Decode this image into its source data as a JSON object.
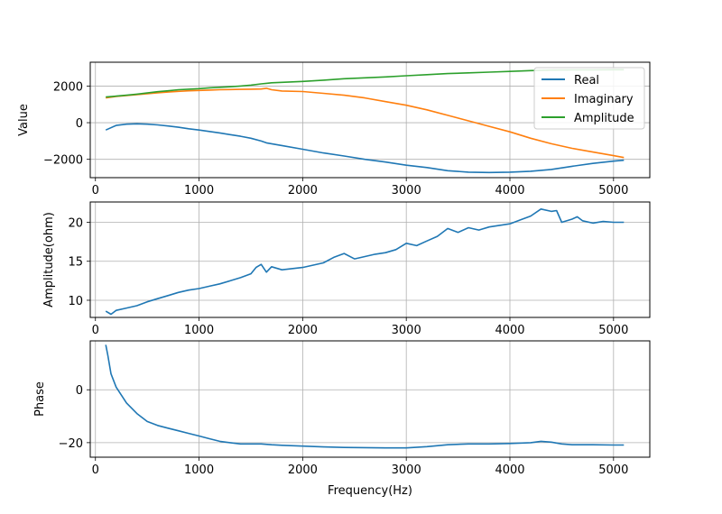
{
  "figure": {
    "xlabel": "Frequency(Hz)"
  },
  "chart_data": [
    {
      "type": "line",
      "title": "",
      "xlabel": "",
      "ylabel": "Value",
      "xlim": [
        -50,
        5350
      ],
      "ylim": [
        -3000,
        3300
      ],
      "xticks": [
        0,
        1000,
        2000,
        3000,
        4000,
        5000
      ],
      "yticks": [
        -2000,
        0,
        2000
      ],
      "xtick_labels": [
        "0",
        "1000",
        "2000",
        "3000",
        "4000",
        "5000"
      ],
      "ytick_labels": [
        "−2000",
        "0",
        "2000"
      ],
      "grid": true,
      "legend": "top-right",
      "x": [
        100,
        200,
        300,
        400,
        500,
        600,
        700,
        800,
        900,
        1000,
        1100,
        1200,
        1300,
        1400,
        1500,
        1600,
        1650,
        1700,
        1800,
        2000,
        2200,
        2400,
        2600,
        2800,
        3000,
        3200,
        3400,
        3600,
        3800,
        4000,
        4200,
        4400,
        4600,
        4800,
        5000,
        5100
      ],
      "series": [
        {
          "name": "Real",
          "color": "#1f77b4",
          "values": [
            -400,
            -150,
            -80,
            -60,
            -80,
            -120,
            -180,
            -250,
            -330,
            -400,
            -480,
            -560,
            -650,
            -740,
            -850,
            -1000,
            -1100,
            -1150,
            -1250,
            -1450,
            -1650,
            -1820,
            -2000,
            -2150,
            -2320,
            -2450,
            -2620,
            -2700,
            -2720,
            -2700,
            -2650,
            -2550,
            -2380,
            -2220,
            -2100,
            -2050
          ]
        },
        {
          "name": "Imaginary",
          "color": "#ff7f0e",
          "values": [
            1350,
            1430,
            1480,
            1530,
            1580,
            1630,
            1670,
            1710,
            1740,
            1760,
            1780,
            1800,
            1810,
            1820,
            1830,
            1840,
            1880,
            1800,
            1730,
            1700,
            1600,
            1500,
            1350,
            1150,
            950,
            700,
            400,
            100,
            -200,
            -500,
            -850,
            -1150,
            -1400,
            -1600,
            -1800,
            -1900
          ]
        },
        {
          "name": "Amplitude",
          "color": "#2ca02c",
          "values": [
            1400,
            1450,
            1500,
            1560,
            1620,
            1690,
            1740,
            1800,
            1830,
            1860,
            1900,
            1930,
            1960,
            2000,
            2050,
            2120,
            2150,
            2180,
            2200,
            2250,
            2320,
            2400,
            2450,
            2500,
            2560,
            2620,
            2680,
            2720,
            2760,
            2800,
            2840,
            2870,
            2880,
            2880,
            2890,
            2890
          ]
        }
      ]
    },
    {
      "type": "line",
      "title": "",
      "xlabel": "",
      "ylabel": "Amplitude(ohm)",
      "xlim": [
        -50,
        5350
      ],
      "ylim": [
        7.8,
        22.6
      ],
      "xticks": [
        0,
        1000,
        2000,
        3000,
        4000,
        5000
      ],
      "yticks": [
        10,
        15,
        20
      ],
      "xtick_labels": [
        "0",
        "1000",
        "2000",
        "3000",
        "4000",
        "5000"
      ],
      "ytick_labels": [
        "10",
        "15",
        "20"
      ],
      "grid": true,
      "legend": "none",
      "x": [
        100,
        150,
        200,
        300,
        400,
        500,
        600,
        700,
        800,
        900,
        1000,
        1100,
        1200,
        1300,
        1400,
        1500,
        1550,
        1600,
        1650,
        1700,
        1800,
        2000,
        2200,
        2300,
        2400,
        2500,
        2600,
        2700,
        2800,
        2900,
        3000,
        3100,
        3200,
        3300,
        3400,
        3500,
        3600,
        3700,
        3800,
        3900,
        4000,
        4100,
        4200,
        4300,
        4400,
        4450,
        4500,
        4600,
        4650,
        4700,
        4800,
        4900,
        5000,
        5100
      ],
      "series": [
        {
          "name": "Amplitude(ohm)",
          "color": "#1f77b4",
          "values": [
            8.6,
            8.2,
            8.7,
            9.0,
            9.3,
            9.8,
            10.2,
            10.6,
            11.0,
            11.3,
            11.5,
            11.8,
            12.1,
            12.5,
            12.9,
            13.4,
            14.2,
            14.6,
            13.6,
            14.3,
            13.9,
            14.2,
            14.8,
            15.5,
            16.0,
            15.3,
            15.6,
            15.9,
            16.1,
            16.5,
            17.3,
            17.0,
            17.6,
            18.2,
            19.2,
            18.7,
            19.3,
            19.0,
            19.4,
            19.6,
            19.8,
            20.3,
            20.8,
            21.7,
            21.4,
            21.5,
            20.0,
            20.4,
            20.7,
            20.2,
            19.9,
            20.1,
            20.0,
            20.0
          ]
        }
      ]
    },
    {
      "type": "line",
      "title": "",
      "xlabel": "Frequency(Hz)",
      "ylabel": "Phase",
      "xlim": [
        -50,
        5350
      ],
      "ylim": [
        -25.5,
        18.5
      ],
      "xticks": [
        0,
        1000,
        2000,
        3000,
        4000,
        5000
      ],
      "yticks": [
        -20,
        0
      ],
      "xtick_labels": [
        "0",
        "1000",
        "2000",
        "3000",
        "4000",
        "5000"
      ],
      "ytick_labels": [
        "−20",
        "0"
      ],
      "grid": true,
      "legend": "none",
      "x": [
        100,
        120,
        150,
        200,
        250,
        300,
        400,
        500,
        600,
        700,
        800,
        900,
        1000,
        1100,
        1200,
        1300,
        1400,
        1500,
        1600,
        1700,
        1800,
        2000,
        2200,
        2400,
        2600,
        2800,
        3000,
        3200,
        3400,
        3600,
        3800,
        4000,
        4200,
        4300,
        4400,
        4500,
        4600,
        4800,
        5000,
        5100
      ],
      "series": [
        {
          "name": "Phase",
          "color": "#1f77b4",
          "values": [
            17,
            13,
            6,
            1,
            -2,
            -5,
            -9,
            -12,
            -13.5,
            -14.5,
            -15.5,
            -16.5,
            -17.5,
            -18.5,
            -19.5,
            -20,
            -20.5,
            -20.5,
            -20.5,
            -20.8,
            -21,
            -21.3,
            -21.6,
            -21.8,
            -21.9,
            -22,
            -22,
            -21.5,
            -20.8,
            -20.5,
            -20.5,
            -20.3,
            -20,
            -19.5,
            -19.8,
            -20.5,
            -20.8,
            -20.8,
            -20.9,
            -20.9
          ]
        }
      ]
    }
  ]
}
